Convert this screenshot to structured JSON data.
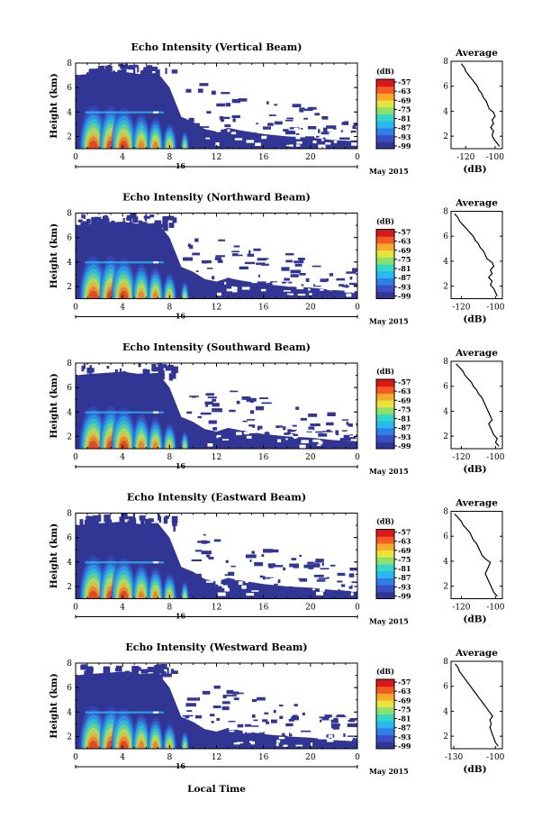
{
  "figure": {
    "x_axis_label": "Local Time",
    "date_label": "May 2015",
    "date_marker": "16"
  },
  "colorbar": {
    "unit": "(dB)",
    "ticks": [
      "-57",
      "-63",
      "-69",
      "-75",
      "-81",
      "-87",
      "-93",
      "-99"
    ],
    "colors": [
      "#313695",
      "#3a4fc4",
      "#2f7fe8",
      "#29b8f0",
      "#34d8c8",
      "#8de06c",
      "#e8e43c",
      "#f9a92c",
      "#f45a22",
      "#d7191c"
    ]
  },
  "chart_data": [
    {
      "type": "heatmap",
      "title": "Echo Intensity (Vertical Beam)",
      "ylabel": "Height (km)",
      "x_ticks": [
        "0",
        "4",
        "8",
        "12",
        "16",
        "20",
        "0"
      ],
      "y_ticks": [
        "2",
        "4",
        "6",
        "8"
      ],
      "xlim": [
        0,
        24
      ],
      "ylim": [
        1,
        8
      ],
      "clim": [
        -99,
        -57
      ],
      "profile": {
        "title": "Average",
        "xlabel": "(dB)",
        "x_ticks": [
          "-120",
          "-100"
        ],
        "xlim": [
          -130,
          -95
        ],
        "y_ticks": [
          "2",
          "4",
          "6",
          "8"
        ],
        "height": [
          1.2,
          1.5,
          1.8,
          2.1,
          2.4,
          2.7,
          3.0,
          3.3,
          3.6,
          3.9,
          4.2,
          4.5,
          4.8,
          5.1,
          5.4,
          5.7,
          6.0,
          6.3,
          6.6,
          6.9,
          7.2,
          7.5,
          7.8
        ],
        "value": [
          -97,
          -99,
          -101,
          -102,
          -101,
          -103,
          -101,
          -102,
          -100,
          -101,
          -104,
          -105,
          -106,
          -108,
          -109,
          -111,
          -112,
          -114,
          -116,
          -118,
          -120,
          -121,
          -123
        ]
      }
    },
    {
      "type": "heatmap",
      "title": "Echo Intensity (Northward Beam)",
      "ylabel": "Height (km)",
      "x_ticks": [
        "0",
        "4",
        "8",
        "12",
        "16",
        "20",
        "0"
      ],
      "y_ticks": [
        "2",
        "4",
        "6",
        "8"
      ],
      "xlim": [
        0,
        24
      ],
      "ylim": [
        1,
        8
      ],
      "clim": [
        -99,
        -57
      ],
      "profile": {
        "title": "Average",
        "xlabel": "(dB)",
        "x_ticks": [
          "-120",
          "-100"
        ],
        "xlim": [
          -126,
          -96
        ],
        "y_ticks": [
          "2",
          "4",
          "6",
          "8"
        ],
        "height": [
          1.2,
          1.5,
          1.8,
          2.1,
          2.4,
          2.7,
          3.0,
          3.3,
          3.6,
          3.9,
          4.2,
          4.5,
          4.8,
          5.1,
          5.4,
          5.7,
          6.0,
          6.3,
          6.6,
          6.9,
          7.2,
          7.5,
          7.8
        ],
        "value": [
          -99,
          -100,
          -101,
          -103,
          -102,
          -104,
          -102,
          -103,
          -101,
          -102,
          -105,
          -106,
          -107,
          -109,
          -110,
          -112,
          -113,
          -115,
          -117,
          -119,
          -121,
          -122,
          -124
        ]
      }
    },
    {
      "type": "heatmap",
      "title": "Echo Intensity (Southward Beam)",
      "ylabel": "Height (km)",
      "x_ticks": [
        "0",
        "4",
        "8",
        "12",
        "16",
        "20",
        "0"
      ],
      "y_ticks": [
        "2",
        "4",
        "6",
        "8"
      ],
      "xlim": [
        0,
        24
      ],
      "ylim": [
        1,
        8
      ],
      "clim": [
        -99,
        -57
      ],
      "profile": {
        "title": "Average",
        "xlabel": "(dB)",
        "x_ticks": [
          "-120",
          "-100"
        ],
        "xlim": [
          -126,
          -96
        ],
        "y_ticks": [
          "2",
          "4",
          "6",
          "8"
        ],
        "height": [
          1.2,
          1.5,
          1.8,
          2.1,
          2.4,
          2.7,
          3.0,
          3.3,
          3.6,
          3.9,
          4.2,
          4.5,
          4.8,
          5.1,
          5.4,
          5.7,
          6.0,
          6.3,
          6.6,
          6.9,
          7.2,
          7.5,
          7.8
        ],
        "value": [
          -98,
          -100,
          -99,
          -101,
          -102,
          -103,
          -104,
          -102,
          -103,
          -104,
          -105,
          -106,
          -107,
          -108,
          -110,
          -111,
          -113,
          -114,
          -116,
          -118,
          -119,
          -121,
          -123
        ]
      }
    },
    {
      "type": "heatmap",
      "title": "Echo Intensity (Eastward Beam)",
      "ylabel": "Height (km)",
      "x_ticks": [
        "0",
        "4",
        "8",
        "12",
        "16",
        "20",
        "0"
      ],
      "y_ticks": [
        "2",
        "4",
        "6",
        "8"
      ],
      "xlim": [
        0,
        24
      ],
      "ylim": [
        1,
        8
      ],
      "clim": [
        -99,
        -57
      ],
      "profile": {
        "title": "Average",
        "xlabel": "(dB)",
        "x_ticks": [
          "-120",
          "-100"
        ],
        "xlim": [
          -126,
          -96
        ],
        "y_ticks": [
          "2",
          "4",
          "6",
          "8"
        ],
        "height": [
          1.2,
          1.5,
          1.8,
          2.1,
          2.4,
          2.7,
          3.0,
          3.3,
          3.6,
          3.9,
          4.2,
          4.5,
          4.8,
          5.1,
          5.4,
          5.7,
          6.0,
          6.3,
          6.6,
          6.9,
          7.2,
          7.5,
          7.8
        ],
        "value": [
          -99,
          -101,
          -102,
          -103,
          -104,
          -105,
          -106,
          -105,
          -104,
          -103,
          -106,
          -108,
          -109,
          -110,
          -111,
          -113,
          -114,
          -115,
          -117,
          -119,
          -120,
          -122,
          -124
        ]
      }
    },
    {
      "type": "heatmap",
      "title": "Echo Intensity (Westward Beam)",
      "ylabel": "Height (km)",
      "x_ticks": [
        "0",
        "4",
        "8",
        "12",
        "16",
        "20",
        "0"
      ],
      "y_ticks": [
        "2",
        "4",
        "6",
        "8"
      ],
      "xlim": [
        0,
        24
      ],
      "ylim": [
        1,
        8
      ],
      "clim": [
        -99,
        -57
      ],
      "profile": {
        "title": "Average",
        "xlabel": "(dB)",
        "x_ticks": [
          "-130",
          "-100"
        ],
        "xlim": [
          -132,
          -95
        ],
        "y_ticks": [
          "2",
          "4",
          "6",
          "8"
        ],
        "height": [
          1.2,
          1.5,
          1.8,
          2.1,
          2.4,
          2.7,
          3.0,
          3.3,
          3.6,
          3.9,
          4.2,
          4.5,
          4.8,
          5.1,
          5.4,
          5.7,
          6.0,
          6.3,
          6.6,
          6.9,
          7.2,
          7.5,
          7.8
        ],
        "value": [
          -98,
          -100,
          -101,
          -102,
          -103,
          -104,
          -103,
          -104,
          -102,
          -104,
          -106,
          -108,
          -110,
          -112,
          -114,
          -116,
          -118,
          -120,
          -122,
          -124,
          -126,
          -127,
          -129
        ]
      }
    }
  ]
}
